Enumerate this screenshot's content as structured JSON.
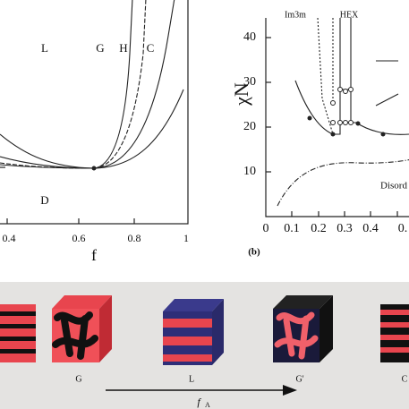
{
  "panel_a": {
    "x_ticks": [
      "0.4",
      "0.6",
      "0.8",
      "1"
    ],
    "x_label": "f",
    "regions": [
      "L",
      "G",
      "H",
      "C",
      "D"
    ]
  },
  "panel_b": {
    "label": "(b)",
    "y_label": "χN",
    "y_ticks": [
      "40",
      "30",
      "20",
      "10"
    ],
    "x_ticks": [
      "0",
      "0.1",
      "0.2",
      "0.3",
      "0.4",
      "0."
    ],
    "annotations": [
      "Im3m",
      "HEX",
      "Disord"
    ]
  },
  "morphologies": {
    "labels": [
      "G",
      "L",
      "G'",
      "C"
    ],
    "arrow_label": "f",
    "arrow_subscript": "A"
  }
}
